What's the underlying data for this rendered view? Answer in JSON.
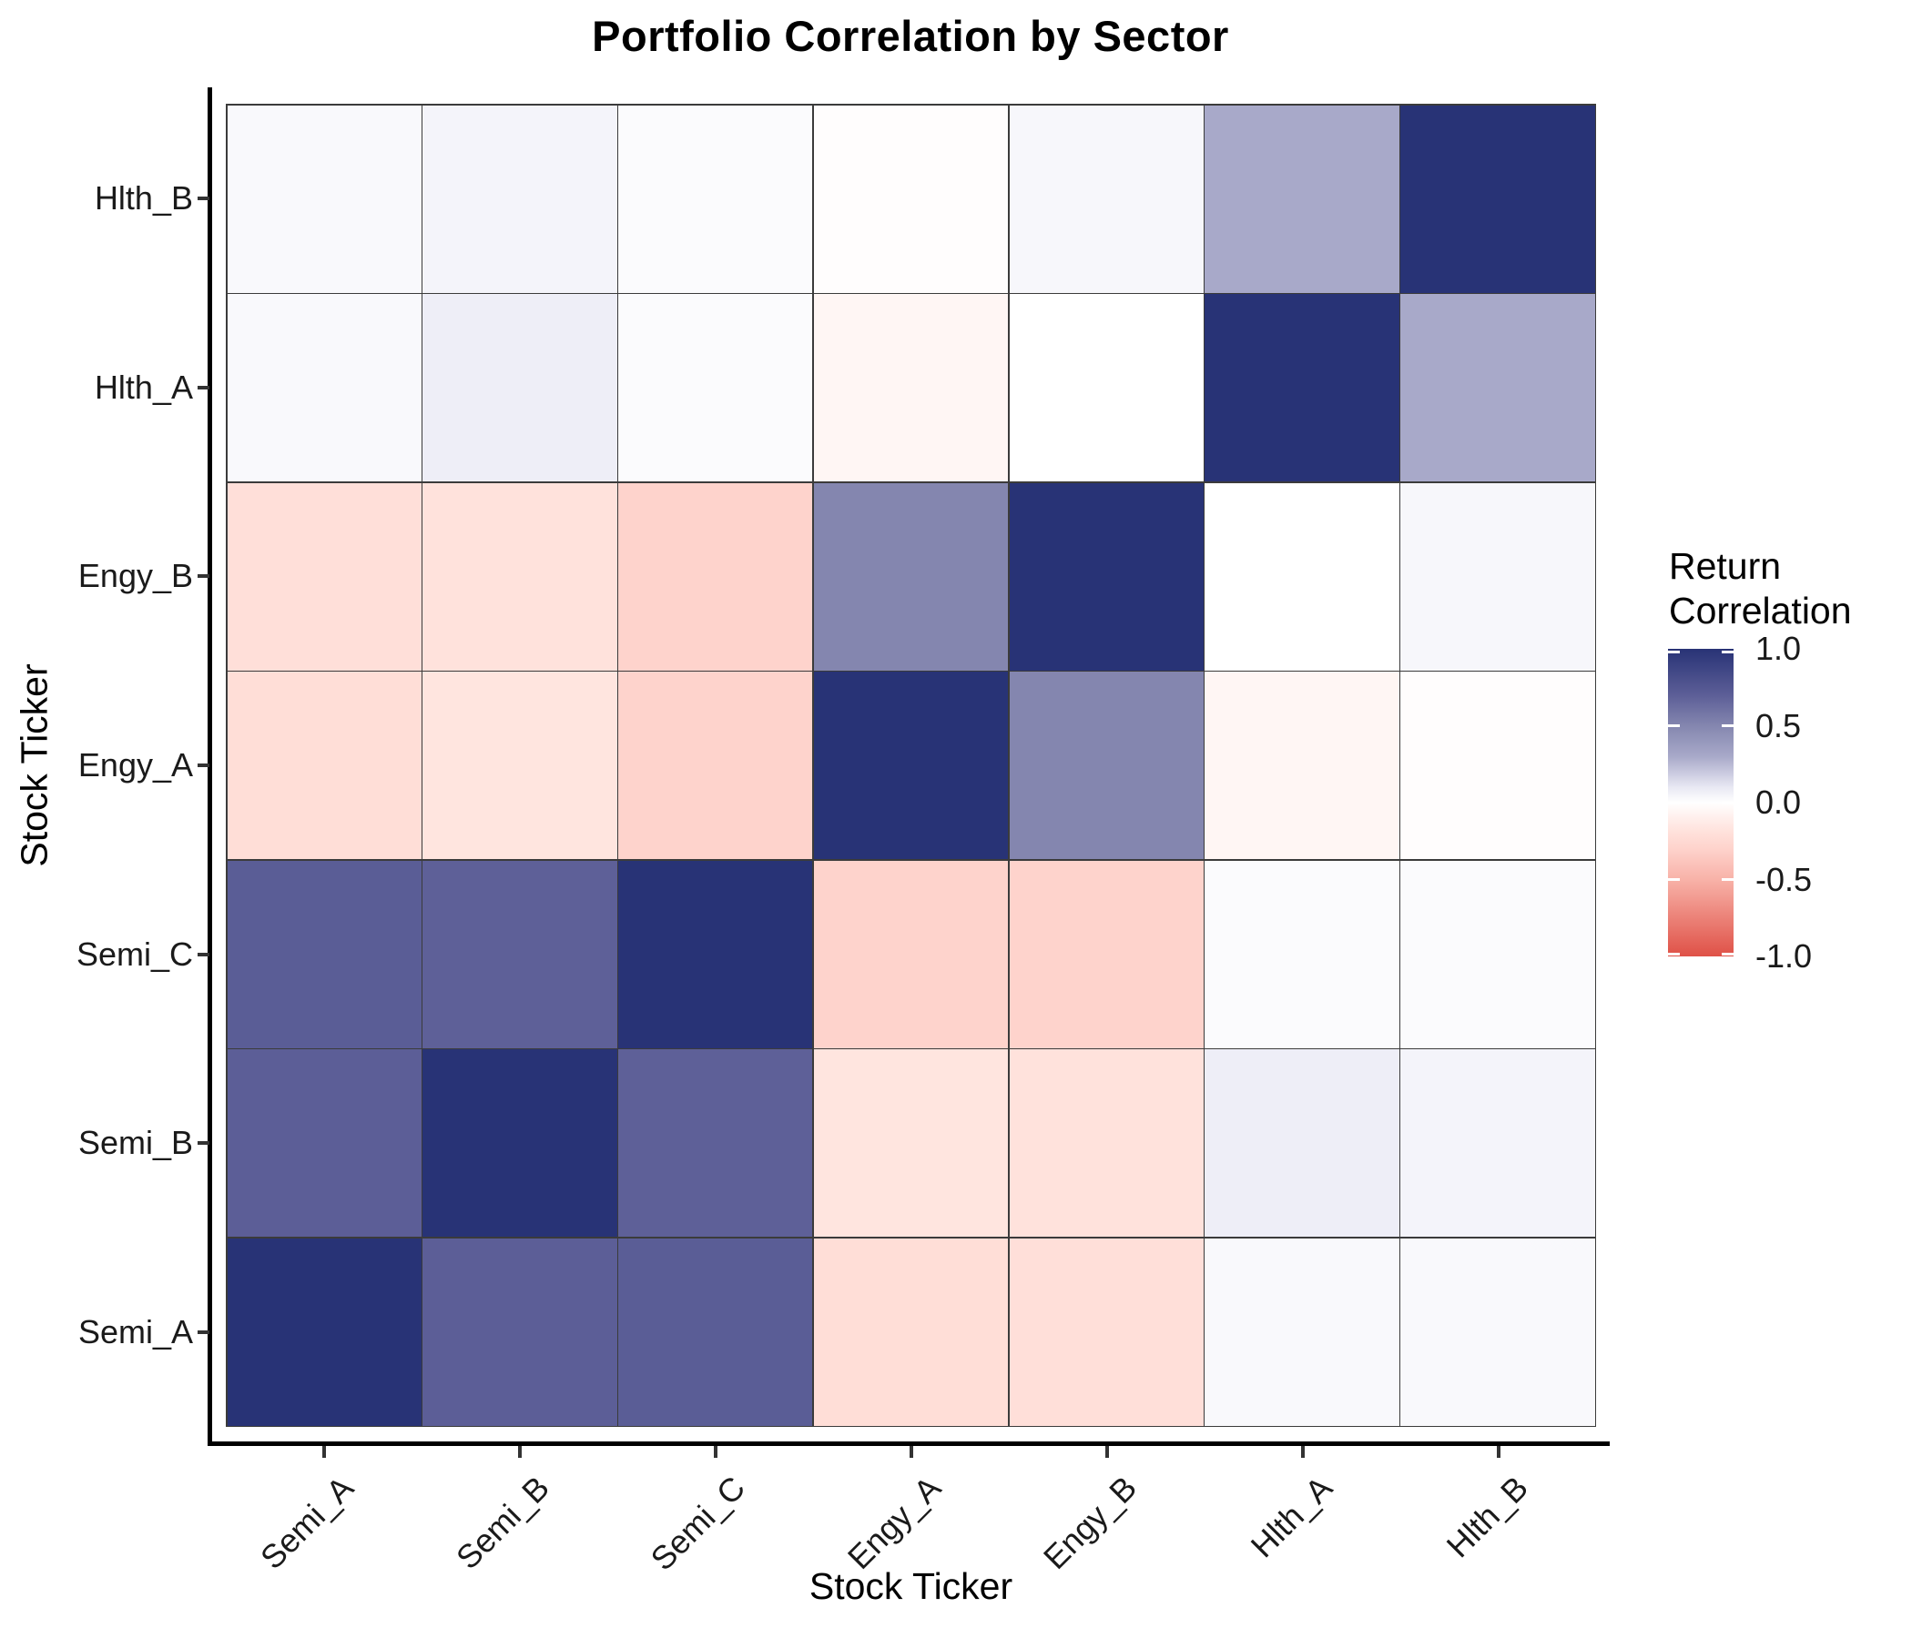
{
  "title": "Portfolio Correlation by Sector",
  "x_axis": {
    "title": "Stock Ticker",
    "ticks": [
      "Semi_A",
      "Semi_B",
      "Semi_C",
      "Engy_A",
      "Engy_B",
      "Hlth_A",
      "Hlth_B"
    ]
  },
  "y_axis": {
    "title": "Stock Ticker",
    "ticks_bottom_to_top": [
      "Semi_A",
      "Semi_B",
      "Semi_C",
      "Engy_A",
      "Engy_B",
      "Hlth_A",
      "Hlth_B"
    ]
  },
  "legend": {
    "title_lines": [
      "Return",
      "Correlation"
    ],
    "tick_labels": [
      "1.0",
      "0.5",
      "0.0",
      "-0.5",
      "-1.0"
    ]
  },
  "chart_data": {
    "type": "heatmap",
    "title": "Portfolio Correlation by Sector",
    "xlabel": "Stock Ticker",
    "ylabel": "Stock Ticker",
    "legend_title": "Return Correlation",
    "categories": [
      "Semi_A",
      "Semi_B",
      "Semi_C",
      "Engy_A",
      "Engy_B",
      "Hlth_A",
      "Hlth_B"
    ],
    "rows_top_to_bottom": [
      "Hlth_B",
      "Hlth_A",
      "Engy_B",
      "Engy_A",
      "Semi_C",
      "Semi_B",
      "Semi_A"
    ],
    "matrix_rows_top_to_bottom": [
      {
        "row": "Hlth_B",
        "values": [
          0.03,
          0.05,
          0.02,
          -0.01,
          0.04,
          0.3,
          1.0
        ]
      },
      {
        "row": "Hlth_A",
        "values": [
          0.03,
          0.08,
          0.02,
          -0.06,
          0.0,
          1.0,
          0.3
        ]
      },
      {
        "row": "Engy_B",
        "values": [
          -0.21,
          -0.19,
          -0.3,
          0.5,
          1.0,
          0.0,
          0.04
        ]
      },
      {
        "row": "Engy_A",
        "values": [
          -0.22,
          -0.17,
          -0.3,
          1.0,
          0.5,
          -0.06,
          -0.01
        ]
      },
      {
        "row": "Semi_C",
        "values": [
          0.71,
          0.69,
          1.0,
          -0.3,
          -0.3,
          0.02,
          0.02
        ]
      },
      {
        "row": "Semi_B",
        "values": [
          0.7,
          1.0,
          0.69,
          -0.17,
          -0.19,
          0.08,
          0.05
        ]
      },
      {
        "row": "Semi_A",
        "values": [
          1.0,
          0.7,
          0.71,
          -0.22,
          -0.21,
          0.03,
          0.03
        ]
      }
    ],
    "value_domain": [
      -1,
      1
    ],
    "legend_breaks": [
      1.0,
      0.5,
      0.0,
      -0.5,
      -1.0
    ],
    "palette_anchors": [
      {
        "v": -1.0,
        "c": "#DF5147"
      },
      {
        "v": -0.5,
        "c": "#F8B2A8"
      },
      {
        "v": -0.3,
        "c": "#FED3CC"
      },
      {
        "v": -0.18,
        "c": "#FFE3DD"
      },
      {
        "v": 0.0,
        "c": "#FFFFFF"
      },
      {
        "v": 0.08,
        "c": "#EEEEF7"
      },
      {
        "v": 0.3,
        "c": "#A8A9C9"
      },
      {
        "v": 0.5,
        "c": "#8486AF"
      },
      {
        "v": 0.7,
        "c": "#5C5E97"
      },
      {
        "v": 1.0,
        "c": "#283376"
      }
    ],
    "colors": {
      "high": "#283376",
      "mid": "#FFFFFF",
      "low": "#DF5147",
      "tile_border": "#3B3B3B",
      "axis_line": "#000000",
      "tick_mark": "#333333",
      "axis_text": "#1A1A1A"
    }
  }
}
